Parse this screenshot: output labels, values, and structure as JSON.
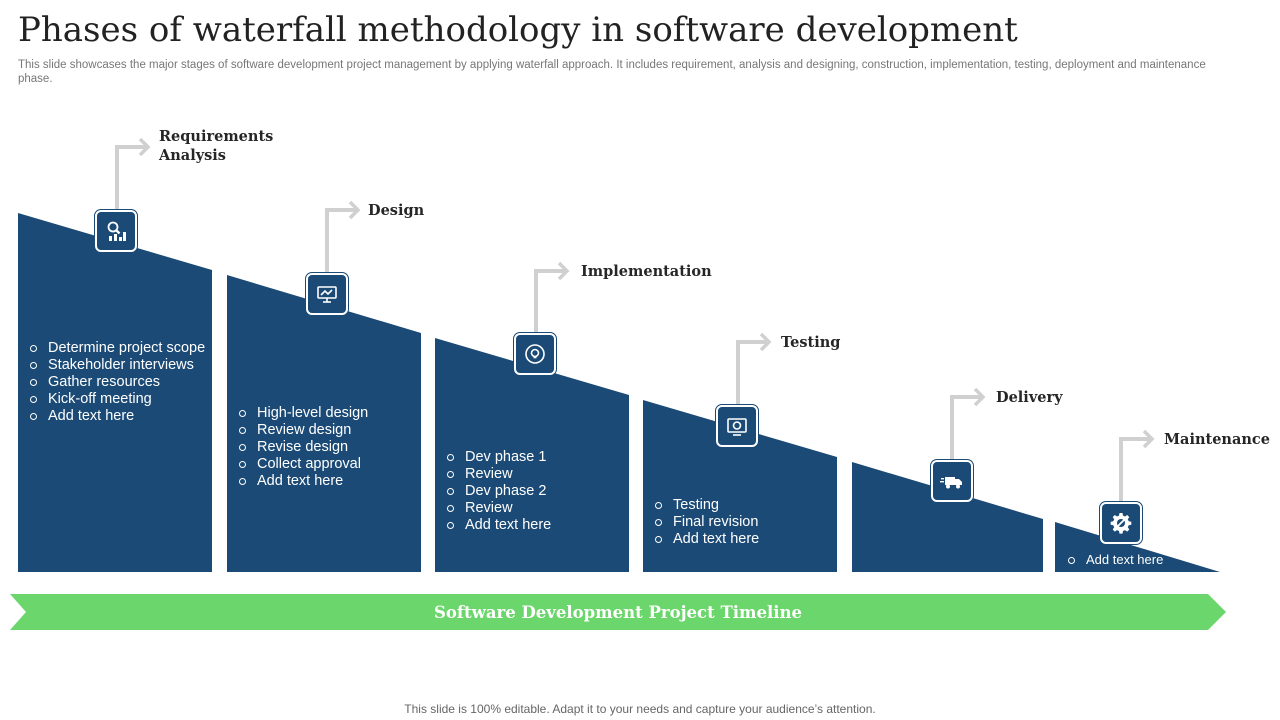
{
  "header": {
    "title": "Phases of waterfall methodology in software development",
    "subtitle": "This slide showcases the major stages of software development project management by applying waterfall approach. It includes requirement, analysis and designing, construction, implementation, testing, deployment and maintenance phase."
  },
  "colors": {
    "stage_fill": "#1a4a75",
    "timeline_fill": "#6bd66b",
    "connector": "#d0d0d0"
  },
  "stages": [
    {
      "label": "Requirements\nAnalysis",
      "icon": "requirements-analysis-icon",
      "items": [
        "Determine project scope",
        "Stakeholder interviews",
        "Gather resources",
        "Kick-off meeting",
        "Add text here"
      ]
    },
    {
      "label": "Design",
      "icon": "design-board-icon",
      "items": [
        "High-level design",
        "Review design",
        "Revise design",
        "Collect approval",
        "Add text here"
      ]
    },
    {
      "label": "Implementation",
      "icon": "implementation-cycle-icon",
      "items": [
        "Dev phase 1",
        "Review",
        "Dev phase 2",
        "Review",
        "Add text here"
      ]
    },
    {
      "label": "Testing",
      "icon": "testing-monitor-icon",
      "items": [
        "Testing",
        "Final revision",
        "Add text here"
      ]
    },
    {
      "label": "Delivery",
      "icon": "delivery-truck-icon",
      "items": []
    },
    {
      "label": "Maintenance",
      "icon": "maintenance-gear-icon",
      "items": [
        "Add text here"
      ]
    }
  ],
  "timeline": {
    "label": "Software Development Project Timeline"
  },
  "footer": {
    "text": "This slide is 100% editable. Adapt it to your needs and capture your audience’s attention."
  }
}
